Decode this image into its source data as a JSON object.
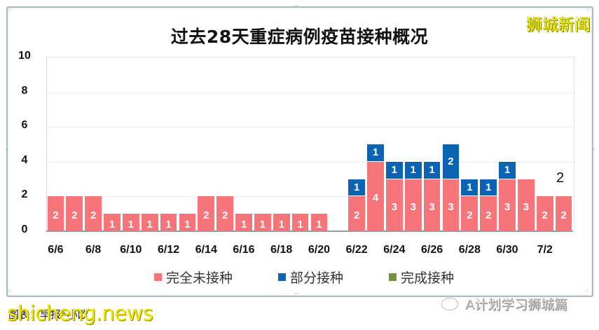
{
  "title": "过去28天重症病例疫苗接种概况",
  "brand_watermark": "狮城新闻",
  "footer_source": "图表：早报•小欧",
  "watermark_site": "shicheng.news",
  "watermark_account": "A计划学习狮城篇",
  "legend": [
    {
      "label": "完全未接种",
      "color": "#f5757a"
    },
    {
      "label": "部分接种",
      "color": "#0b63b3"
    },
    {
      "label": "完成接种",
      "color": "#76923c"
    }
  ],
  "y_ticks": [
    "10",
    "8",
    "6",
    "4",
    "2",
    "0"
  ],
  "x_tick_labels": [
    "6/6",
    "6/8",
    "6/10",
    "6/12",
    "6/14",
    "6/16",
    "6/18",
    "6/20",
    "6/22",
    "6/24",
    "6/26",
    "6/28",
    "6/30",
    "7/2"
  ],
  "annotation": "2",
  "chart_data": {
    "type": "bar",
    "stacked": true,
    "title": "过去28天重症病例疫苗接种概况",
    "xlabel": "",
    "ylabel": "",
    "ylim": [
      0,
      10
    ],
    "yticks": [
      0,
      2,
      4,
      6,
      8,
      10
    ],
    "grid": true,
    "legend_position": "bottom",
    "categories": [
      "6/6",
      "6/7",
      "6/8",
      "6/9",
      "6/10",
      "6/11",
      "6/12",
      "6/13",
      "6/14",
      "6/15",
      "6/16",
      "6/17",
      "6/18",
      "6/19",
      "6/20",
      "6/21",
      "6/22",
      "6/23",
      "6/24",
      "6/25",
      "6/26",
      "6/27",
      "6/28",
      "6/29",
      "6/30",
      "7/1",
      "7/2",
      "7/3"
    ],
    "series": [
      {
        "name": "完全未接种",
        "color": "#f5757a",
        "values": [
          2,
          2,
          2,
          1,
          1,
          1,
          1,
          1,
          2,
          2,
          1,
          1,
          1,
          1,
          1,
          0,
          2,
          4,
          3,
          3,
          3,
          3,
          2,
          2,
          3,
          3,
          2,
          2
        ]
      },
      {
        "name": "部分接种",
        "color": "#0b63b3",
        "values": [
          0,
          0,
          0,
          0,
          0,
          0,
          0,
          0,
          0,
          0,
          0,
          0,
          0,
          0,
          0,
          0,
          1,
          1,
          1,
          1,
          1,
          2,
          1,
          1,
          1,
          0,
          0,
          0
        ]
      },
      {
        "name": "完成接种",
        "color": "#76923c",
        "values": [
          0,
          0,
          0,
          0,
          0,
          0,
          0,
          0,
          0,
          0,
          0,
          0,
          0,
          0,
          0,
          0,
          0,
          0,
          0,
          0,
          0,
          0,
          0,
          0,
          0,
          0,
          0,
          0
        ]
      }
    ],
    "annotations": [
      {
        "x": "7/3",
        "y": 2,
        "text": "2"
      }
    ]
  }
}
